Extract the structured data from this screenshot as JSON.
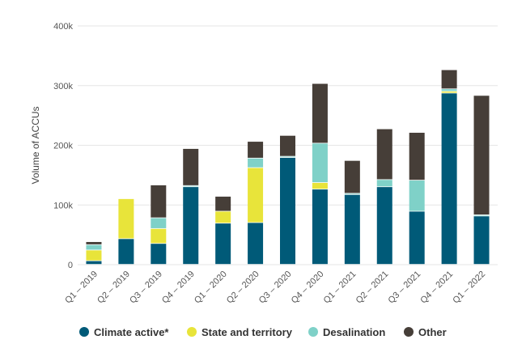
{
  "chart_data": {
    "type": "bar",
    "stacked": true,
    "categories": [
      "Q1 – 2019",
      "Q2 – 2019",
      "Q3 – 2019",
      "Q4 – 2019",
      "Q1 – 2020",
      "Q2 – 2020",
      "Q3 – 2020",
      "Q4 – 2020",
      "Q1 – 2021",
      "Q2 – 2021",
      "Q3 – 2021",
      "Q4 – 2021",
      "Q1 – 2022"
    ],
    "series": [
      {
        "name": "Climate active*",
        "color": "#005a78",
        "values": [
          6000,
          43000,
          35000,
          130000,
          69000,
          70000,
          179000,
          126000,
          117000,
          130000,
          89000,
          287000,
          81000
        ]
      },
      {
        "name": "State and territory",
        "color": "#e8e43a",
        "values": [
          18000,
          67000,
          25000,
          0,
          20000,
          92000,
          0,
          11000,
          0,
          0,
          0,
          3000,
          0
        ]
      },
      {
        "name": "Desalination",
        "color": "#7fd1c8",
        "values": [
          9000,
          0,
          18000,
          2000,
          0,
          16000,
          2000,
          66000,
          2000,
          12000,
          52000,
          4000,
          2000
        ]
      },
      {
        "name": "Other",
        "color": "#463e38",
        "values": [
          5000,
          0,
          55000,
          62000,
          25000,
          28000,
          35000,
          100000,
          55000,
          85000,
          80000,
          32000,
          200000
        ]
      }
    ],
    "ylabel": "Volume of ACCUs",
    "xlabel": "",
    "ylim": [
      0,
      400000
    ],
    "yticks": [
      0,
      100000,
      200000,
      300000,
      400000
    ],
    "ytick_labels": [
      "0",
      "100k",
      "200k",
      "300k",
      "400k"
    ],
    "grid": true,
    "legend_position": "bottom"
  }
}
